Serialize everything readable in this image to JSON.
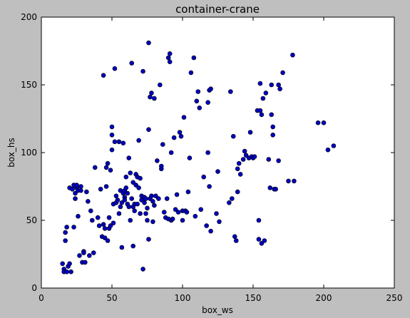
{
  "chart_data": {
    "type": "scatter",
    "title": "container-crane",
    "xlabel": "box_ws",
    "ylabel": "box_hs",
    "xlim": [
      0,
      250
    ],
    "ylim": [
      0,
      200
    ],
    "xticks": [
      0,
      50,
      100,
      150,
      200,
      250
    ],
    "yticks": [
      0,
      50,
      100,
      150,
      200
    ],
    "grid": false,
    "marker_color": "#0000bf",
    "marker_edge": "#000000",
    "series": [
      {
        "points": [
          [
            15,
            18
          ],
          [
            16,
            14
          ],
          [
            16,
            12
          ],
          [
            17,
            35
          ],
          [
            17,
            41
          ],
          [
            18,
            45
          ],
          [
            18,
            12
          ],
          [
            19,
            16
          ],
          [
            20,
            18
          ],
          [
            20,
            74
          ],
          [
            21,
            12
          ],
          [
            22,
            73
          ],
          [
            23,
            76
          ],
          [
            23,
            45
          ],
          [
            24,
            70
          ],
          [
            24,
            66
          ],
          [
            25,
            74
          ],
          [
            25,
            76
          ],
          [
            26,
            53
          ],
          [
            26,
            72
          ],
          [
            27,
            24
          ],
          [
            28,
            75
          ],
          [
            28,
            72
          ],
          [
            29,
            19
          ],
          [
            30,
            27
          ],
          [
            30,
            26
          ],
          [
            31,
            19
          ],
          [
            32,
            71
          ],
          [
            33,
            64
          ],
          [
            34,
            24
          ],
          [
            35,
            57
          ],
          [
            36,
            50
          ],
          [
            37,
            26
          ],
          [
            38,
            89
          ],
          [
            40,
            52
          ],
          [
            41,
            46
          ],
          [
            42,
            73
          ],
          [
            43,
            38
          ],
          [
            44,
            157
          ],
          [
            44,
            47
          ],
          [
            45,
            37
          ],
          [
            45,
            44
          ],
          [
            46,
            89
          ],
          [
            46,
            75
          ],
          [
            47,
            92
          ],
          [
            47,
            35
          ],
          [
            48,
            52
          ],
          [
            48,
            44
          ],
          [
            49,
            87
          ],
          [
            49,
            46
          ],
          [
            50,
            102
          ],
          [
            50,
            119
          ],
          [
            50,
            113
          ],
          [
            51,
            62
          ],
          [
            51,
            48
          ],
          [
            52,
            162
          ],
          [
            52,
            108
          ],
          [
            53,
            68
          ],
          [
            53,
            63
          ],
          [
            54,
            65
          ],
          [
            55,
            55
          ],
          [
            55,
            108
          ],
          [
            56,
            72
          ],
          [
            56,
            60
          ],
          [
            57,
            63
          ],
          [
            57,
            30
          ],
          [
            58,
            107
          ],
          [
            58,
            70
          ],
          [
            59,
            67
          ],
          [
            59,
            72
          ],
          [
            59,
            65
          ],
          [
            60,
            82
          ],
          [
            60,
            74
          ],
          [
            61,
            70
          ],
          [
            61,
            62
          ],
          [
            62,
            60
          ],
          [
            62,
            96
          ],
          [
            63,
            85
          ],
          [
            63,
            50
          ],
          [
            64,
            66
          ],
          [
            64,
            166
          ],
          [
            65,
            31
          ],
          [
            65,
            78
          ],
          [
            65,
            60
          ],
          [
            66,
            62
          ],
          [
            66,
            57
          ],
          [
            67,
            84
          ],
          [
            67,
            76
          ],
          [
            68,
            82
          ],
          [
            68,
            62
          ],
          [
            69,
            109
          ],
          [
            69,
            74
          ],
          [
            70,
            55
          ],
          [
            70,
            81
          ],
          [
            71,
            68
          ],
          [
            71,
            65
          ],
          [
            72,
            14
          ],
          [
            72,
            160
          ],
          [
            73,
            67
          ],
          [
            73,
            63
          ],
          [
            74,
            66
          ],
          [
            74,
            55
          ],
          [
            75,
            50
          ],
          [
            75,
            59
          ],
          [
            76,
            181
          ],
          [
            76,
            117
          ],
          [
            76,
            36
          ],
          [
            77,
            141
          ],
          [
            77,
            66
          ],
          [
            78,
            144
          ],
          [
            78,
            68
          ],
          [
            79,
            64
          ],
          [
            79,
            49
          ],
          [
            80,
            140
          ],
          [
            80,
            61
          ],
          [
            81,
            68
          ],
          [
            82,
            94
          ],
          [
            83,
            66
          ],
          [
            84,
            150
          ],
          [
            85,
            88
          ],
          [
            85,
            90
          ],
          [
            86,
            106
          ],
          [
            87,
            56
          ],
          [
            88,
            52
          ],
          [
            89,
            66
          ],
          [
            90,
            170
          ],
          [
            90,
            51
          ],
          [
            91,
            173
          ],
          [
            91,
            167
          ],
          [
            92,
            100
          ],
          [
            92,
            50
          ],
          [
            93,
            51
          ],
          [
            94,
            111
          ],
          [
            95,
            58
          ],
          [
            96,
            69
          ],
          [
            97,
            56
          ],
          [
            98,
            115
          ],
          [
            99,
            112
          ],
          [
            100,
            50
          ],
          [
            100,
            57
          ],
          [
            101,
            126
          ],
          [
            102,
            57
          ],
          [
            103,
            56
          ],
          [
            104,
            71
          ],
          [
            105,
            96
          ],
          [
            106,
            159
          ],
          [
            108,
            170
          ],
          [
            109,
            53
          ],
          [
            110,
            138
          ],
          [
            111,
            145
          ],
          [
            112,
            133
          ],
          [
            113,
            58
          ],
          [
            115,
            82
          ],
          [
            117,
            46
          ],
          [
            118,
            137
          ],
          [
            118,
            100
          ],
          [
            119,
            146
          ],
          [
            119,
            75
          ],
          [
            120,
            147
          ],
          [
            120,
            42
          ],
          [
            124,
            55
          ],
          [
            125,
            86
          ],
          [
            126,
            49
          ],
          [
            133,
            63
          ],
          [
            134,
            145
          ],
          [
            135,
            66
          ],
          [
            136,
            112
          ],
          [
            137,
            38
          ],
          [
            138,
            35
          ],
          [
            139,
            88
          ],
          [
            139,
            71
          ],
          [
            140,
            92
          ],
          [
            141,
            84
          ],
          [
            143,
            95
          ],
          [
            144,
            101
          ],
          [
            145,
            98
          ],
          [
            147,
            96
          ],
          [
            148,
            115
          ],
          [
            149,
            97
          ],
          [
            150,
            96
          ],
          [
            151,
            97
          ],
          [
            153,
            131
          ],
          [
            154,
            50
          ],
          [
            154,
            36
          ],
          [
            155,
            151
          ],
          [
            155,
            131
          ],
          [
            156,
            33
          ],
          [
            156,
            128
          ],
          [
            157,
            140
          ],
          [
            158,
            35
          ],
          [
            159,
            144
          ],
          [
            161,
            95
          ],
          [
            162,
            74
          ],
          [
            163,
            128
          ],
          [
            163,
            150
          ],
          [
            164,
            113
          ],
          [
            164,
            119
          ],
          [
            165,
            73
          ],
          [
            166,
            73
          ],
          [
            168,
            150
          ],
          [
            168,
            94
          ],
          [
            169,
            147
          ],
          [
            171,
            159
          ],
          [
            175,
            79
          ],
          [
            178,
            172
          ],
          [
            179,
            79
          ],
          [
            196,
            122
          ],
          [
            200,
            122
          ],
          [
            203,
            102
          ],
          [
            207,
            105
          ]
        ]
      }
    ]
  }
}
